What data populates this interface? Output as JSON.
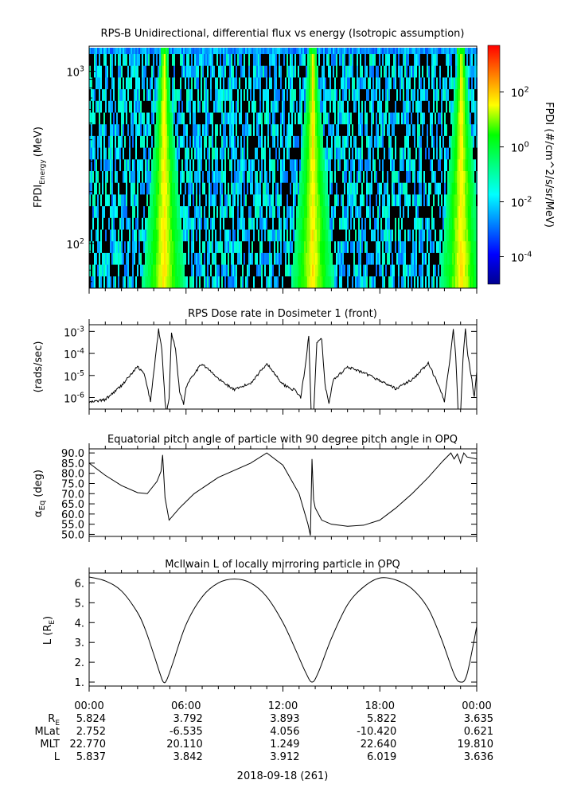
{
  "chart_data": [
    {
      "type": "heatmap",
      "title": "RPS-B  Unidirectional, differential flux vs energy (Isotropic assumption)",
      "ylabel_main": "FPDI",
      "ylabel_sub": "Energy",
      "ylabel_unit": "(MeV)",
      "y_scale": "log",
      "ylim": [
        55,
        1400
      ],
      "y_ticks": [
        {
          "value": 100,
          "base": "10",
          "exp": "2"
        },
        {
          "value": 1000,
          "base": "10",
          "exp": "3"
        }
      ],
      "energy_channels": 20,
      "colorbar": {
        "label": "FPDI (#/cm^2/s/sr/MeV)",
        "scale": "log",
        "range": [
          1e-05,
          5000
        ],
        "ticks": [
          {
            "value": 0.0001,
            "base": "10",
            "exp": "-4"
          },
          {
            "value": 0.01,
            "base": "10",
            "exp": "-2"
          },
          {
            "value": 1,
            "base": "10",
            "exp": "0"
          },
          {
            "value": 100,
            "base": "10",
            "exp": "2"
          }
        ],
        "colormap": [
          "#00008f",
          "#0000ff",
          "#0080ff",
          "#00ffff",
          "#00ff80",
          "#00ff00",
          "#ffff00",
          "#ff8000",
          "#ff0000"
        ]
      },
      "enhancement_hours": [
        4.6,
        13.8,
        23.0
      ]
    },
    {
      "type": "line",
      "title": "RPS  Dose rate in Dosimeter 1 (front)",
      "ylabel": "(rads/sec)",
      "y_scale": "log",
      "ylim": [
        3e-07,
        0.002
      ],
      "y_ticks": [
        {
          "value": 1e-06,
          "base": "10",
          "exp": "-6"
        },
        {
          "value": 1e-05,
          "base": "10",
          "exp": "-5"
        },
        {
          "value": 0.0001,
          "base": "10",
          "exp": "-4"
        },
        {
          "value": 0.001,
          "base": "10",
          "exp": "-3"
        }
      ],
      "x_hours": [
        0,
        1,
        2,
        3,
        3.4,
        3.8,
        4.1,
        4.3,
        4.5,
        4.7,
        4.8,
        4.95,
        5.1,
        5.35,
        5.6,
        5.85,
        6.0,
        6.3,
        7.0,
        8.0,
        9.0,
        10.0,
        11.0,
        12.0,
        12.8,
        13.1,
        13.4,
        13.6,
        13.75,
        13.9,
        14.1,
        14.4,
        14.6,
        14.85,
        15.1,
        16.0,
        17.5,
        19.0,
        20.0,
        21.0,
        21.7,
        22.0,
        22.3,
        22.55,
        22.7,
        22.85,
        23.0,
        23.15,
        23.3,
        23.45,
        23.7,
        23.85,
        24.0
      ],
      "values": [
        6e-07,
        8e-07,
        3.5e-06,
        2.5e-05,
        1.2e-05,
        7e-07,
        6e-05,
        0.0012,
        0.00015,
        7e-07,
        2e-07,
        1e-06,
        0.0009,
        0.00015,
        2e-06,
        5e-07,
        3e-06,
        8e-06,
        3.5e-05,
        7e-06,
        2.2e-06,
        4.5e-06,
        3.5e-05,
        4e-06,
        2e-06,
        1e-06,
        3e-05,
        0.0007,
        2e-07,
        2e-07,
        0.0003,
        0.00045,
        4e-06,
        5e-07,
        6e-06,
        2.5e-05,
        9e-06,
        2.5e-06,
        6.5e-06,
        3.5e-05,
        3e-06,
        7e-07,
        3e-05,
        0.0012,
        8e-05,
        2e-07,
        2e-07,
        6e-05,
        0.0012,
        8e-05,
        6e-06,
        1e-06,
        1.5e-05
      ]
    },
    {
      "type": "line",
      "title": "Equatorial pitch angle of particle with 90 degree pitch angle in OPQ",
      "ylabel_main": "α",
      "ylabel_sub": "Eq",
      "ylabel_unit": "(deg)",
      "ylim": [
        49,
        92
      ],
      "y_ticks": [
        50,
        55,
        60,
        65,
        70,
        75,
        80,
        85,
        90
      ],
      "x_hours": [
        0,
        1,
        2,
        3,
        3.6,
        4.2,
        4.45,
        4.55,
        4.7,
        4.95,
        5.6,
        6.5,
        8,
        10,
        11.0,
        12.0,
        13.0,
        13.55,
        13.7,
        13.8,
        13.9,
        14.0,
        14.4,
        15.0,
        16,
        17,
        18,
        19,
        20,
        21,
        21.9,
        22.4,
        22.6,
        22.8,
        23.0,
        23.2,
        23.4,
        24.0
      ],
      "values": [
        85,
        79,
        74,
        70.5,
        70,
        76,
        81,
        89,
        68,
        57,
        63,
        70,
        78,
        85,
        90,
        84,
        70,
        55,
        49.5,
        87,
        67,
        63,
        57,
        55,
        54,
        54.5,
        57,
        63,
        70,
        78,
        86,
        90,
        87,
        89.5,
        85,
        90,
        88,
        87
      ]
    },
    {
      "type": "line",
      "title": "McIlwain L of locally mirroring particle in OPQ",
      "ylabel_main": "L (R",
      "ylabel_sub": "E",
      "ylabel_unit": ")",
      "ylim": [
        0.8,
        6.5
      ],
      "y_ticks": [
        1,
        2,
        3,
        4,
        5,
        6
      ],
      "x_hours": [
        0,
        1,
        2,
        3,
        3.5,
        4,
        4.4,
        4.6,
        4.8,
        5.2,
        6,
        7,
        8,
        9,
        10,
        11,
        12,
        12.8,
        13.4,
        13.8,
        14.2,
        15,
        16,
        17,
        18,
        19,
        20,
        21,
        21.8,
        22.6,
        23.0,
        23.4,
        24.0
      ],
      "values": [
        6.3,
        6.1,
        5.6,
        4.5,
        3.6,
        2.4,
        1.4,
        1.0,
        1.1,
        2.0,
        3.9,
        5.3,
        6.0,
        6.2,
        6.0,
        5.3,
        4.0,
        2.6,
        1.5,
        1.0,
        1.5,
        3.2,
        4.9,
        5.8,
        6.25,
        6.15,
        5.7,
        4.7,
        3.2,
        1.4,
        1.0,
        1.4,
        3.8
      ]
    }
  ],
  "time_axis": {
    "tick_labels": [
      "00:00",
      "06:00",
      "12:00",
      "18:00",
      "00:00"
    ],
    "date_label": "2018-09-18 (261)"
  },
  "ephemeris": {
    "rows": [
      {
        "label": "R",
        "label_sub": "E",
        "values": [
          "5.824",
          "3.792",
          "3.893",
          "5.822",
          "3.635"
        ]
      },
      {
        "label": "MLat",
        "label_sub": "",
        "values": [
          "2.752",
          "-6.535",
          "4.056",
          "-10.420",
          "0.621"
        ]
      },
      {
        "label": "MLT",
        "label_sub": "",
        "values": [
          "22.770",
          "20.110",
          "1.249",
          "22.640",
          "19.810"
        ]
      },
      {
        "label": "L",
        "label_sub": "",
        "values": [
          "5.837",
          "3.842",
          "3.912",
          "6.019",
          "3.636"
        ]
      }
    ]
  }
}
